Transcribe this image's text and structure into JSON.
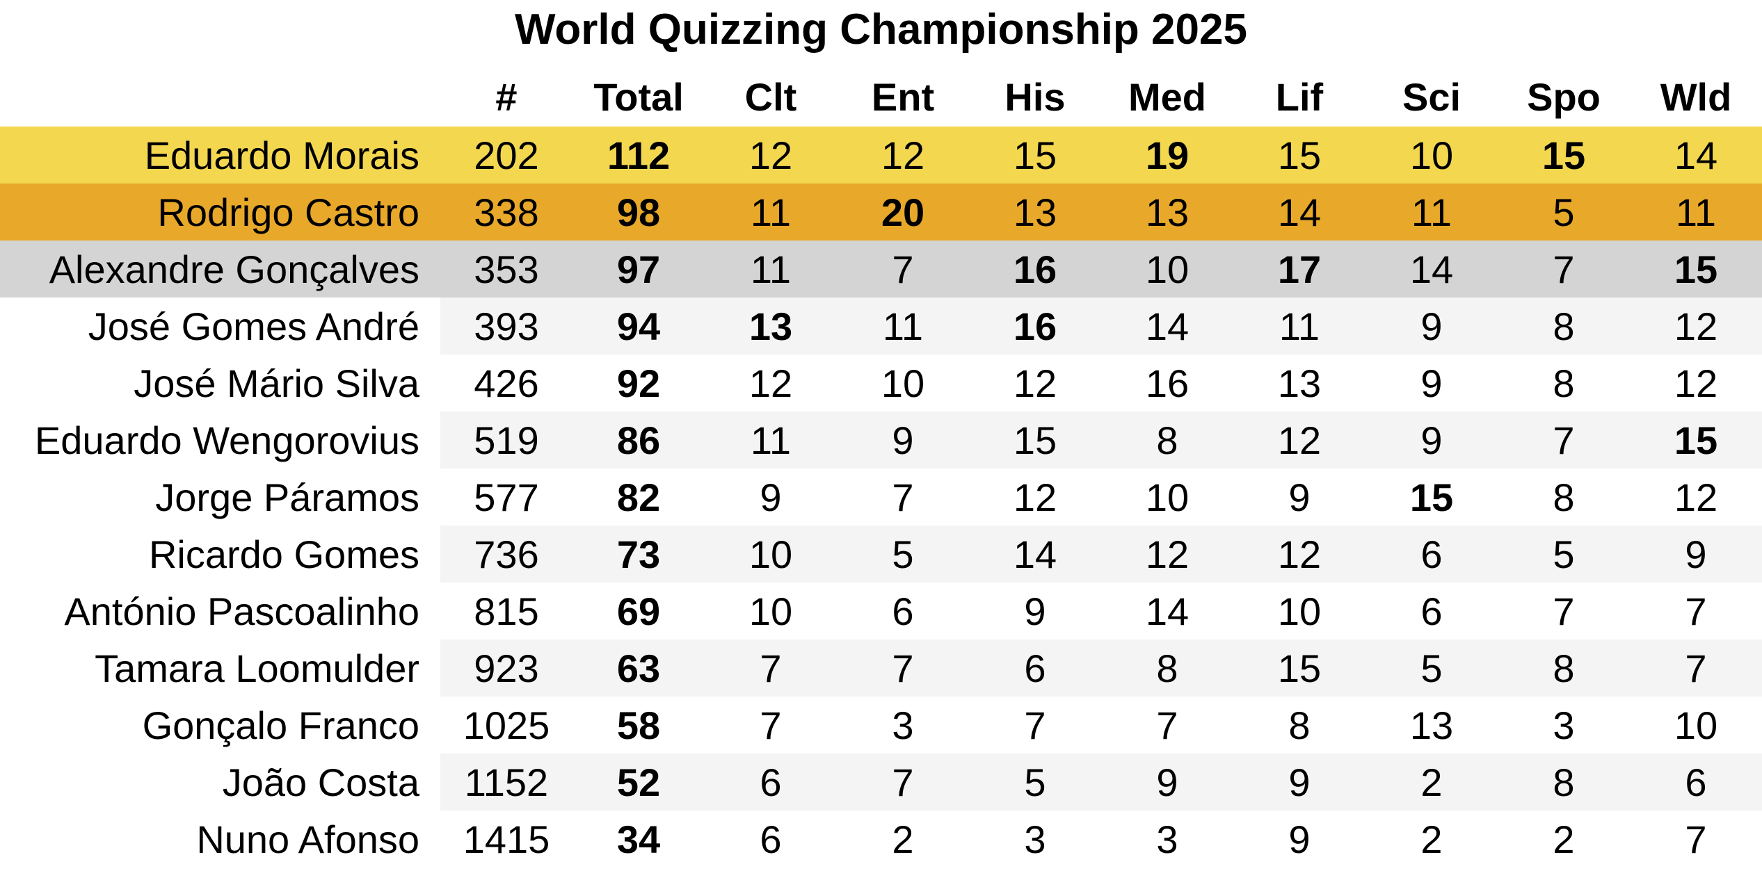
{
  "title": "World Quizzing Championship 2025",
  "columns": [
    "#",
    "Total",
    "Clt",
    "Ent",
    "His",
    "Med",
    "Lif",
    "Sci",
    "Spo",
    "Wld"
  ],
  "rows": [
    {
      "name": "Eduardo Morais",
      "values": [
        202,
        112,
        12,
        12,
        15,
        19,
        15,
        10,
        15,
        14
      ]
    },
    {
      "name": "Rodrigo Castro",
      "values": [
        338,
        98,
        11,
        20,
        13,
        13,
        14,
        11,
        5,
        11
      ]
    },
    {
      "name": "Alexandre Gonçalves",
      "values": [
        353,
        97,
        11,
        7,
        16,
        10,
        17,
        14,
        7,
        15
      ]
    },
    {
      "name": "José Gomes André",
      "values": [
        393,
        94,
        13,
        11,
        16,
        14,
        11,
        9,
        8,
        12
      ]
    },
    {
      "name": "José Mário Silva",
      "values": [
        426,
        92,
        12,
        10,
        12,
        16,
        13,
        9,
        8,
        12
      ]
    },
    {
      "name": "Eduardo Wengorovius",
      "values": [
        519,
        86,
        11,
        9,
        15,
        8,
        12,
        9,
        7,
        15
      ]
    },
    {
      "name": "Jorge Páramos",
      "values": [
        577,
        82,
        9,
        7,
        12,
        10,
        9,
        15,
        8,
        12
      ]
    },
    {
      "name": "Ricardo Gomes",
      "values": [
        736,
        73,
        10,
        5,
        14,
        12,
        12,
        6,
        5,
        9
      ]
    },
    {
      "name": "António Pascoalinho",
      "values": [
        815,
        69,
        10,
        6,
        9,
        14,
        10,
        6,
        7,
        7
      ]
    },
    {
      "name": "Tamara Loomulder",
      "values": [
        923,
        63,
        7,
        7,
        6,
        8,
        15,
        5,
        8,
        7
      ]
    },
    {
      "name": "Gonçalo Franco",
      "values": [
        1025,
        58,
        7,
        3,
        7,
        7,
        8,
        13,
        3,
        10
      ]
    },
    {
      "name": "João Costa",
      "values": [
        1152,
        52,
        6,
        7,
        5,
        9,
        9,
        2,
        8,
        6
      ]
    },
    {
      "name": "Nuno Afonso",
      "values": [
        1415,
        34,
        6,
        2,
        3,
        3,
        9,
        2,
        2,
        7
      ]
    }
  ]
}
